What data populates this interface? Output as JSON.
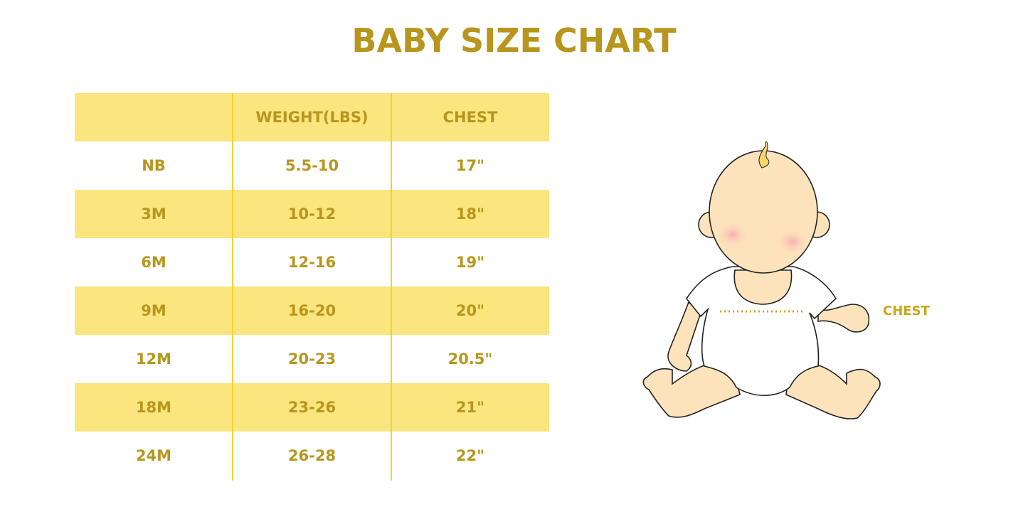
{
  "title": "BABY SIZE CHART",
  "table": {
    "headers": [
      "",
      "WEIGHT(LBS)",
      "CHEST"
    ],
    "rows": [
      [
        "NB",
        "5.5-10",
        "17\""
      ],
      [
        "3M",
        "10-12",
        "18\""
      ],
      [
        "6M",
        "12-16",
        "19\""
      ],
      [
        "9M",
        "16-20",
        "20\""
      ],
      [
        "12M",
        "20-23",
        "20.5\""
      ],
      [
        "18M",
        "23-26",
        "21\""
      ],
      [
        "24M",
        "26-28",
        "22\""
      ]
    ]
  },
  "illustration": {
    "label": "CHEST",
    "icon": "baby-illustration"
  },
  "colors": {
    "accent": "#B8961E",
    "row_fill": "#FAE57E",
    "divider": "#F5D12E"
  }
}
